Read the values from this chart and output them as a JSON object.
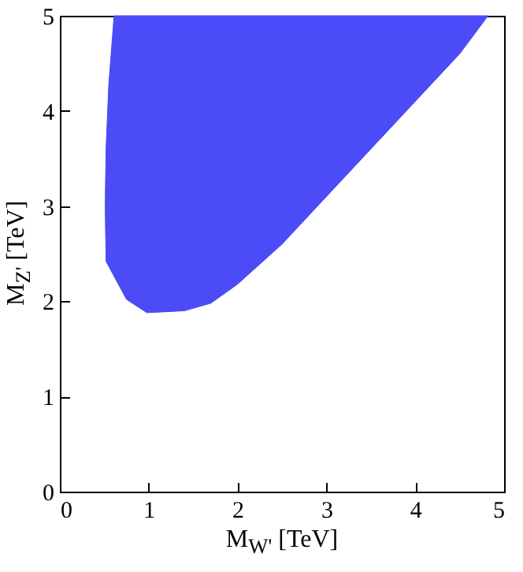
{
  "chart_data": {
    "type": "area",
    "xlabel": "M$_{W'}$ [TeV]",
    "ylabel": "M$_{Z'}$ [TeV]",
    "xlim": [
      0,
      5
    ],
    "ylim": [
      0,
      5
    ],
    "xticks": [
      0,
      1,
      2,
      3,
      4,
      5
    ],
    "yticks": [
      0,
      1,
      2,
      3,
      4,
      5
    ],
    "grid": false,
    "series": [
      {
        "color": "#4b4bf8",
        "x": [
          0.61,
          0.55,
          0.52,
          0.51,
          0.52,
          0.75,
          0.98,
          1.4,
          1.7,
          2.0,
          2.5,
          3.0,
          3.5,
          4.0,
          4.5,
          4.82,
          0.61
        ],
        "values": [
          5,
          4.27,
          3.6,
          3.0,
          2.42,
          2.02,
          1.88,
          1.9,
          1.98,
          2.18,
          2.6,
          3.1,
          3.6,
          4.1,
          4.6,
          5,
          5
        ]
      }
    ]
  }
}
